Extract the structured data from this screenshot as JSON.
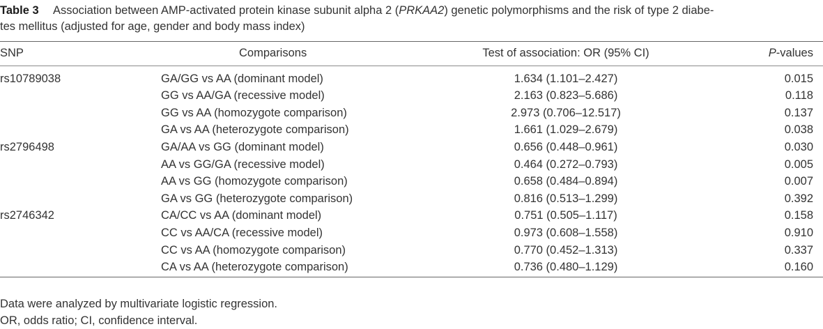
{
  "caption": {
    "label": "Table 3",
    "text_a": "Association between AMP-activated protein kinase subunit alpha 2 (",
    "gene": "PRKAA2",
    "text_b": ") genetic polymorphisms and the risk of type 2 diabe-",
    "line2": "tes mellitus (adjusted for age, gender and body mass index)"
  },
  "headers": {
    "snp": "SNP",
    "comparisons": "Comparisons",
    "test": "Test of association: OR (95% CI)",
    "p_italic": "P",
    "p_rest": "-values"
  },
  "rows": [
    {
      "snp": "rs10789038",
      "comparison": "GA/GG vs AA (dominant model)",
      "or": "1.634 (1.101–2.427)",
      "p": "0.015"
    },
    {
      "snp": "",
      "comparison": "GG vs AA/GA (recessive model)",
      "or": "2.163 (0.823–5.686)",
      "p": "0.118"
    },
    {
      "snp": "",
      "comparison": "GG vs AA (homozygote comparison)",
      "or": "2.973 (0.706–12.517)",
      "p": "0.137"
    },
    {
      "snp": "",
      "comparison": "GA vs AA (heterozygote comparison)",
      "or": "1.661 (1.029–2.679)",
      "p": "0.038"
    },
    {
      "snp": "rs2796498",
      "comparison": "GA/AA vs GG (dominant model)",
      "or": "0.656 (0.448–0.961)",
      "p": "0.030"
    },
    {
      "snp": "",
      "comparison": "AA vs GG/GA (recessive model)",
      "or": "0.464 (0.272–0.793)",
      "p": "0.005"
    },
    {
      "snp": "",
      "comparison": "AA vs GG (homozygote comparison)",
      "or": "0.658 (0.484–0.894)",
      "p": "0.007"
    },
    {
      "snp": "",
      "comparison": "GA vs GG (heterozygote comparison)",
      "or": "0.816 (0.513–1.299)",
      "p": "0.392"
    },
    {
      "snp": "rs2746342",
      "comparison": "CA/CC vs AA (dominant model)",
      "or": "0.751 (0.505–1.117)",
      "p": "0.158"
    },
    {
      "snp": "",
      "comparison": "CC vs AA/CA (recessive model)",
      "or": "0.973 (0.608–1.558)",
      "p": "0.910"
    },
    {
      "snp": "",
      "comparison": "CC vs AA (homozygote comparison)",
      "or": "0.770 (0.452–1.313)",
      "p": "0.337"
    },
    {
      "snp": "",
      "comparison": "CA vs AA (heterozygote comparison)",
      "or": "0.736 (0.480–1.129)",
      "p": "0.160"
    }
  ],
  "footnotes": [
    "Data were analyzed by multivariate logistic regression.",
    "OR, odds ratio; CI, confidence interval."
  ]
}
